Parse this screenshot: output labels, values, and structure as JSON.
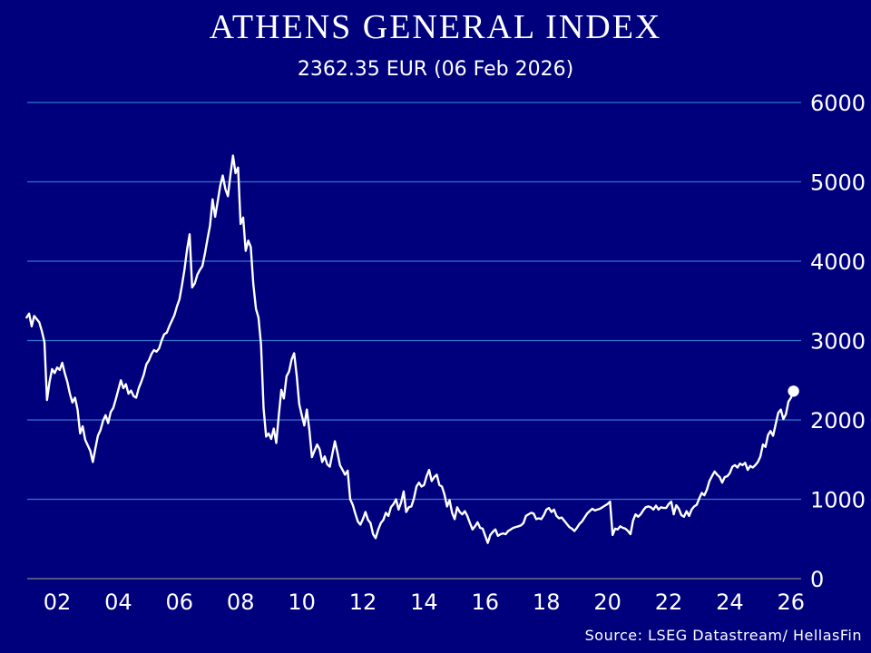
{
  "title": "ATHENS GENERAL INDEX",
  "subtitle": "2362.35 EUR (06 Feb 2026)",
  "source": "Source: LSEG Datastream/ HellasFin",
  "colors": {
    "background": "#00007C",
    "gridline": "#2D78CD",
    "zero_line": "#878787",
    "line": "#FFFFFF",
    "text": "#FFFFFF"
  },
  "chart_data": {
    "type": "line",
    "title": "ATHENS GENERAL INDEX",
    "subtitle": "2362.35 EUR (06 Feb 2026)",
    "ylabel": "",
    "xlabel": "",
    "ylim": [
      0,
      6000
    ],
    "xlim_years": [
      2001.0,
      2026.4
    ],
    "grid": true,
    "legend": false,
    "yticks": [
      0,
      1000,
      2000,
      3000,
      4000,
      5000,
      6000
    ],
    "xticks": [
      {
        "t": 2002,
        "label": "02"
      },
      {
        "t": 2004,
        "label": "04"
      },
      {
        "t": 2006,
        "label": "06"
      },
      {
        "t": 2008,
        "label": "08"
      },
      {
        "t": 2010,
        "label": "10"
      },
      {
        "t": 2012,
        "label": "12"
      },
      {
        "t": 2014,
        "label": "14"
      },
      {
        "t": 2016,
        "label": "16"
      },
      {
        "t": 2018,
        "label": "18"
      },
      {
        "t": 2020,
        "label": "20"
      },
      {
        "t": 2022,
        "label": "22"
      },
      {
        "t": 2024,
        "label": "24"
      },
      {
        "t": 2026,
        "label": "26"
      }
    ],
    "x_start_year": 2001,
    "x_frequency": "monthly",
    "last_point": {
      "value": 2362.35,
      "date_label": "06 Feb 2026"
    },
    "series": [
      {
        "name": "Athens General Index (EUR)",
        "values": [
          3290,
          3340,
          3180,
          3310,
          3270,
          3230,
          3120,
          2980,
          2250,
          2480,
          2640,
          2590,
          2660,
          2630,
          2720,
          2590,
          2480,
          2330,
          2220,
          2280,
          2130,
          1830,
          1920,
          1750,
          1680,
          1610,
          1470,
          1640,
          1800,
          1870,
          1990,
          2060,
          1960,
          2100,
          2150,
          2260,
          2380,
          2500,
          2400,
          2450,
          2330,
          2370,
          2300,
          2280,
          2400,
          2480,
          2570,
          2700,
          2750,
          2830,
          2880,
          2860,
          2900,
          3000,
          3080,
          3100,
          3180,
          3250,
          3320,
          3430,
          3520,
          3700,
          3900,
          4150,
          4340,
          3670,
          3720,
          3830,
          3890,
          3940,
          4100,
          4280,
          4450,
          4780,
          4560,
          4750,
          4950,
          5080,
          4910,
          4820,
          5090,
          5330,
          5110,
          5180,
          4470,
          4550,
          4130,
          4260,
          4180,
          3710,
          3400,
          3290,
          2950,
          2150,
          1790,
          1830,
          1760,
          1890,
          1710,
          2060,
          2380,
          2270,
          2550,
          2610,
          2760,
          2840,
          2560,
          2200,
          2060,
          1930,
          2130,
          1870,
          1530,
          1610,
          1690,
          1630,
          1470,
          1540,
          1440,
          1410,
          1570,
          1730,
          1590,
          1430,
          1370,
          1310,
          1360,
          1000,
          930,
          820,
          720,
          680,
          750,
          840,
          740,
          700,
          560,
          510,
          620,
          700,
          740,
          830,
          790,
          900,
          940,
          1000,
          870,
          960,
          1100,
          840,
          900,
          910,
          1010,
          1160,
          1210,
          1160,
          1180,
          1290,
          1370,
          1230,
          1280,
          1310,
          1180,
          1160,
          1060,
          910,
          990,
          830,
          750,
          900,
          840,
          810,
          850,
          790,
          700,
          620,
          660,
          710,
          640,
          630,
          540,
          450,
          550,
          590,
          620,
          540,
          560,
          570,
          560,
          600,
          620,
          640,
          650,
          660,
          670,
          700,
          790,
          810,
          830,
          820,
          750,
          760,
          750,
          800,
          870,
          890,
          840,
          870,
          790,
          760,
          770,
          730,
          690,
          650,
          630,
          600,
          640,
          690,
          720,
          770,
          820,
          850,
          880,
          860,
          870,
          880,
          900,
          920,
          940,
          970,
          550,
          630,
          620,
          660,
          640,
          630,
          600,
          560,
          730,
          810,
          780,
          810,
          860,
          900,
          910,
          900,
          870,
          920,
          870,
          900,
          890,
          890,
          940,
          970,
          810,
          925,
          880,
          800,
          780,
          850,
          790,
          870,
          910,
          930,
          1010,
          1080,
          1050,
          1120,
          1230,
          1290,
          1350,
          1310,
          1280,
          1210,
          1280,
          1290,
          1330,
          1410,
          1430,
          1400,
          1450,
          1430,
          1460,
          1370,
          1420,
          1400,
          1430,
          1470,
          1540,
          1690,
          1660,
          1810,
          1860,
          1800,
          1950,
          2090,
          2130,
          2010,
          2070,
          2230,
          2280,
          2362.35
        ]
      }
    ]
  }
}
